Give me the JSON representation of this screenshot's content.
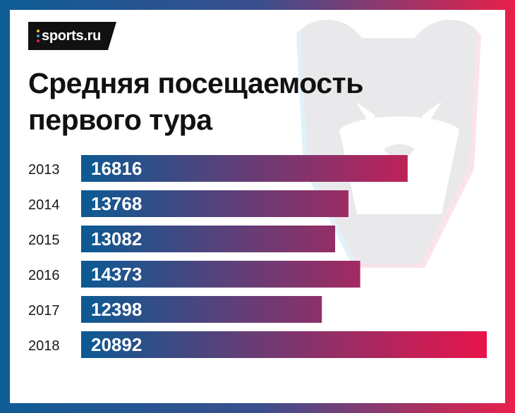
{
  "logo": {
    "text": "sports.ru",
    "dot_colors": [
      "#f3c52a",
      "#37a6dc",
      "#e8204a"
    ]
  },
  "title": {
    "line1": "Средняя посещаемость",
    "line2": "первого тура"
  },
  "colors": {
    "frame_left": "#0e5c96",
    "frame_right": "#e8204a",
    "bar_start": "#0b5a94",
    "bar_end": "#e8144a",
    "bar_text": "#ffffff",
    "year_text": "#1a1a1a"
  },
  "chart_data": {
    "type": "bar",
    "orientation": "horizontal",
    "categories": [
      "2013",
      "2014",
      "2015",
      "2016",
      "2017",
      "2018"
    ],
    "values": [
      16816,
      13768,
      13082,
      14373,
      12398,
      20892
    ],
    "value_labels": [
      "16816",
      "13768",
      "13082",
      "14373",
      "12398",
      "20892"
    ],
    "title": "Средняя посещаемость первого тура",
    "xlim": [
      0,
      20892
    ],
    "grid": false,
    "legend": "none"
  }
}
